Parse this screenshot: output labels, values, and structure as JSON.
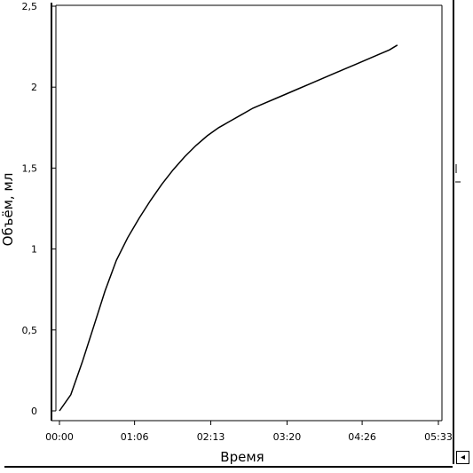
{
  "chart_data": {
    "type": "line",
    "xlabel": "Время",
    "ylabel": "Объём, мл",
    "xlim": [
      0,
      333
    ],
    "ylim": [
      0,
      2.5
    ],
    "x_tick_labels": [
      "00:00",
      "01:06",
      "02:13",
      "03:20",
      "04:26",
      "05:33"
    ],
    "x_tick_values": [
      0,
      66,
      133,
      200,
      266,
      333
    ],
    "y_tick_labels": [
      "0",
      "0,5",
      "1",
      "1,5",
      "2",
      "2,5"
    ],
    "y_tick_values": [
      0,
      0.5,
      1,
      1.5,
      2,
      2.5
    ],
    "grid": false,
    "series": [
      {
        "color": "#000000",
        "x": [
          0,
          10,
          20,
          30,
          40,
          50,
          60,
          70,
          80,
          90,
          100,
          110,
          120,
          130,
          140,
          150,
          160,
          170,
          180,
          190,
          200,
          210,
          220,
          230,
          240,
          250,
          260,
          270,
          280,
          290,
          297
        ],
        "y": [
          0.0,
          0.1,
          0.3,
          0.52,
          0.74,
          0.93,
          1.07,
          1.19,
          1.3,
          1.4,
          1.49,
          1.57,
          1.64,
          1.7,
          1.75,
          1.79,
          1.83,
          1.87,
          1.9,
          1.93,
          1.96,
          1.99,
          2.02,
          2.05,
          2.08,
          2.11,
          2.14,
          2.17,
          2.2,
          2.23,
          2.26
        ]
      }
    ]
  },
  "ui": {
    "scroll_arrow_glyph": "◂"
  }
}
